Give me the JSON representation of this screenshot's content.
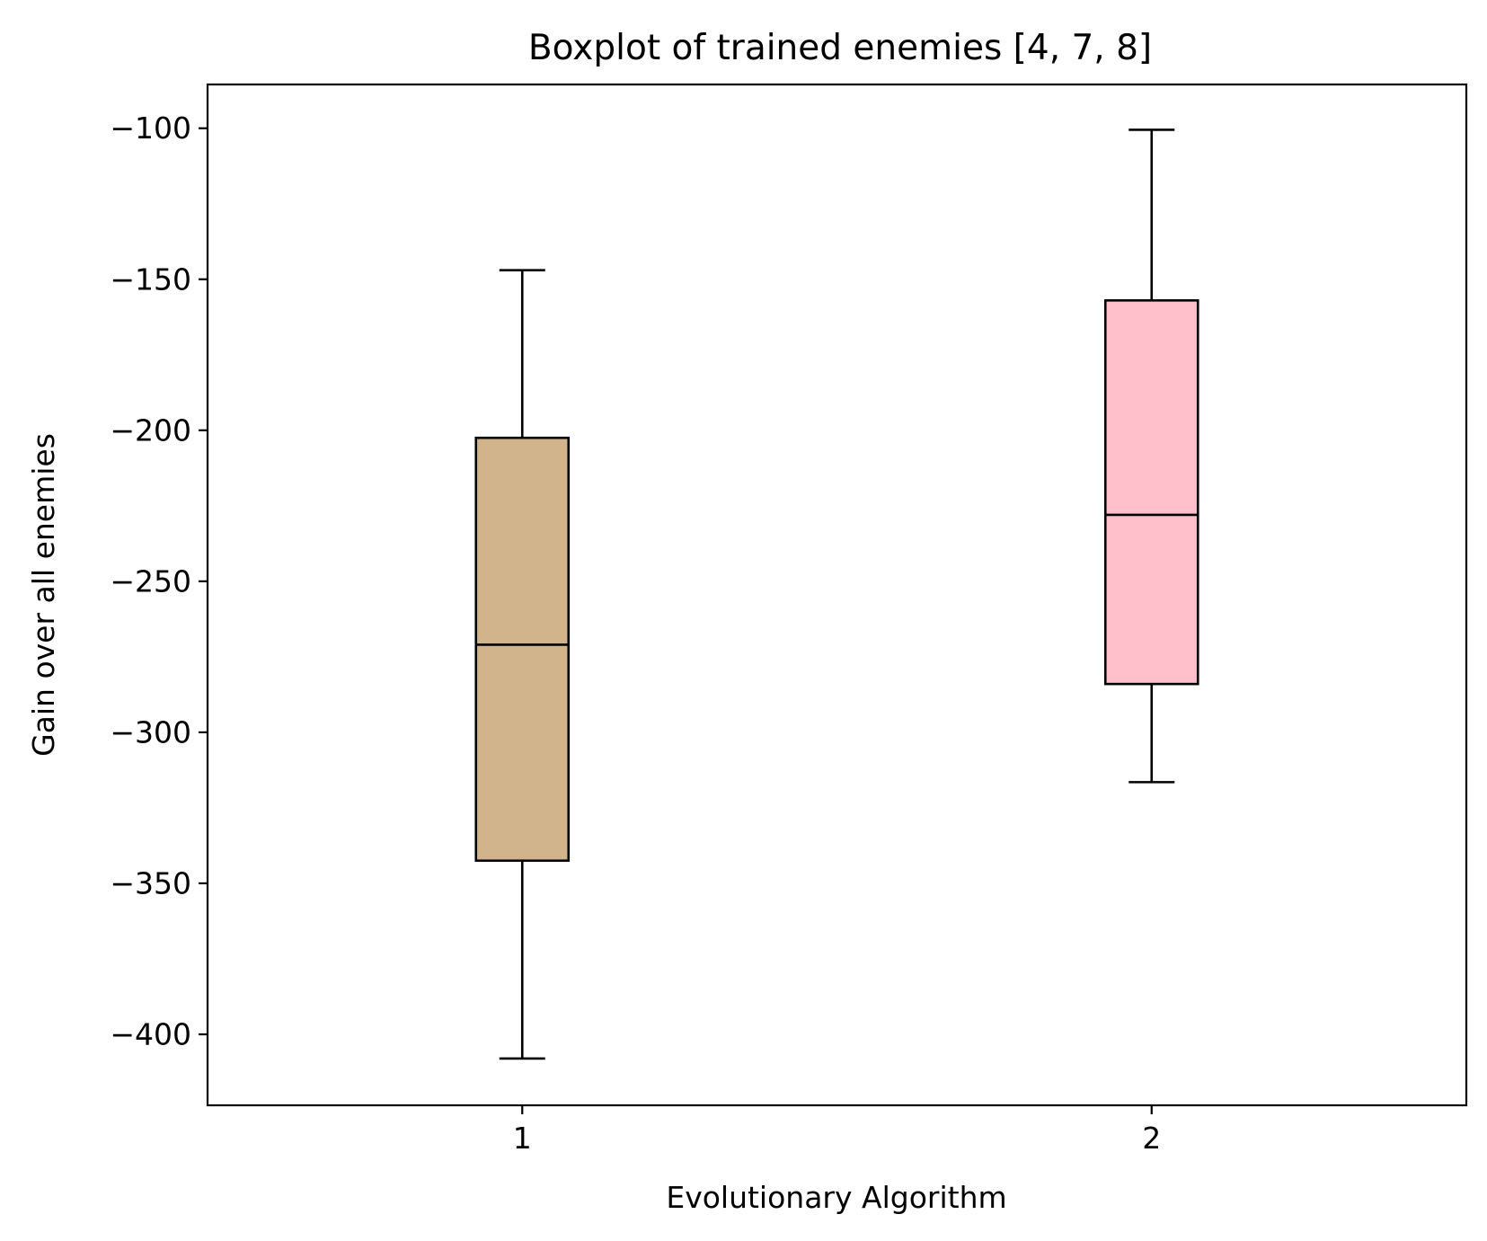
{
  "chart_data": {
    "type": "box",
    "title": "Boxplot of trained enemies [4, 7, 8]",
    "xlabel": "Evolutionary Algorithm",
    "ylabel": "Gain over all enemies",
    "categories": [
      "1",
      "2"
    ],
    "ylim": [
      -423.5,
      -85.5
    ],
    "yticks": [
      -100,
      -150,
      -200,
      -250,
      -300,
      -350,
      -400
    ],
    "ytick_labels": [
      "−100",
      "−150",
      "−200",
      "−250",
      "−300",
      "−350",
      "−400"
    ],
    "grid": false,
    "boxes": [
      {
        "category": "1",
        "whisker_low": -408,
        "q1": -342.5,
        "median": -271,
        "q3": -202.5,
        "whisker_high": -147,
        "color": "#d2b48c"
      },
      {
        "category": "2",
        "whisker_low": -316.5,
        "q1": -284,
        "median": -228,
        "q3": -157,
        "whisker_high": -100.5,
        "color": "#ffc0cb"
      }
    ]
  }
}
